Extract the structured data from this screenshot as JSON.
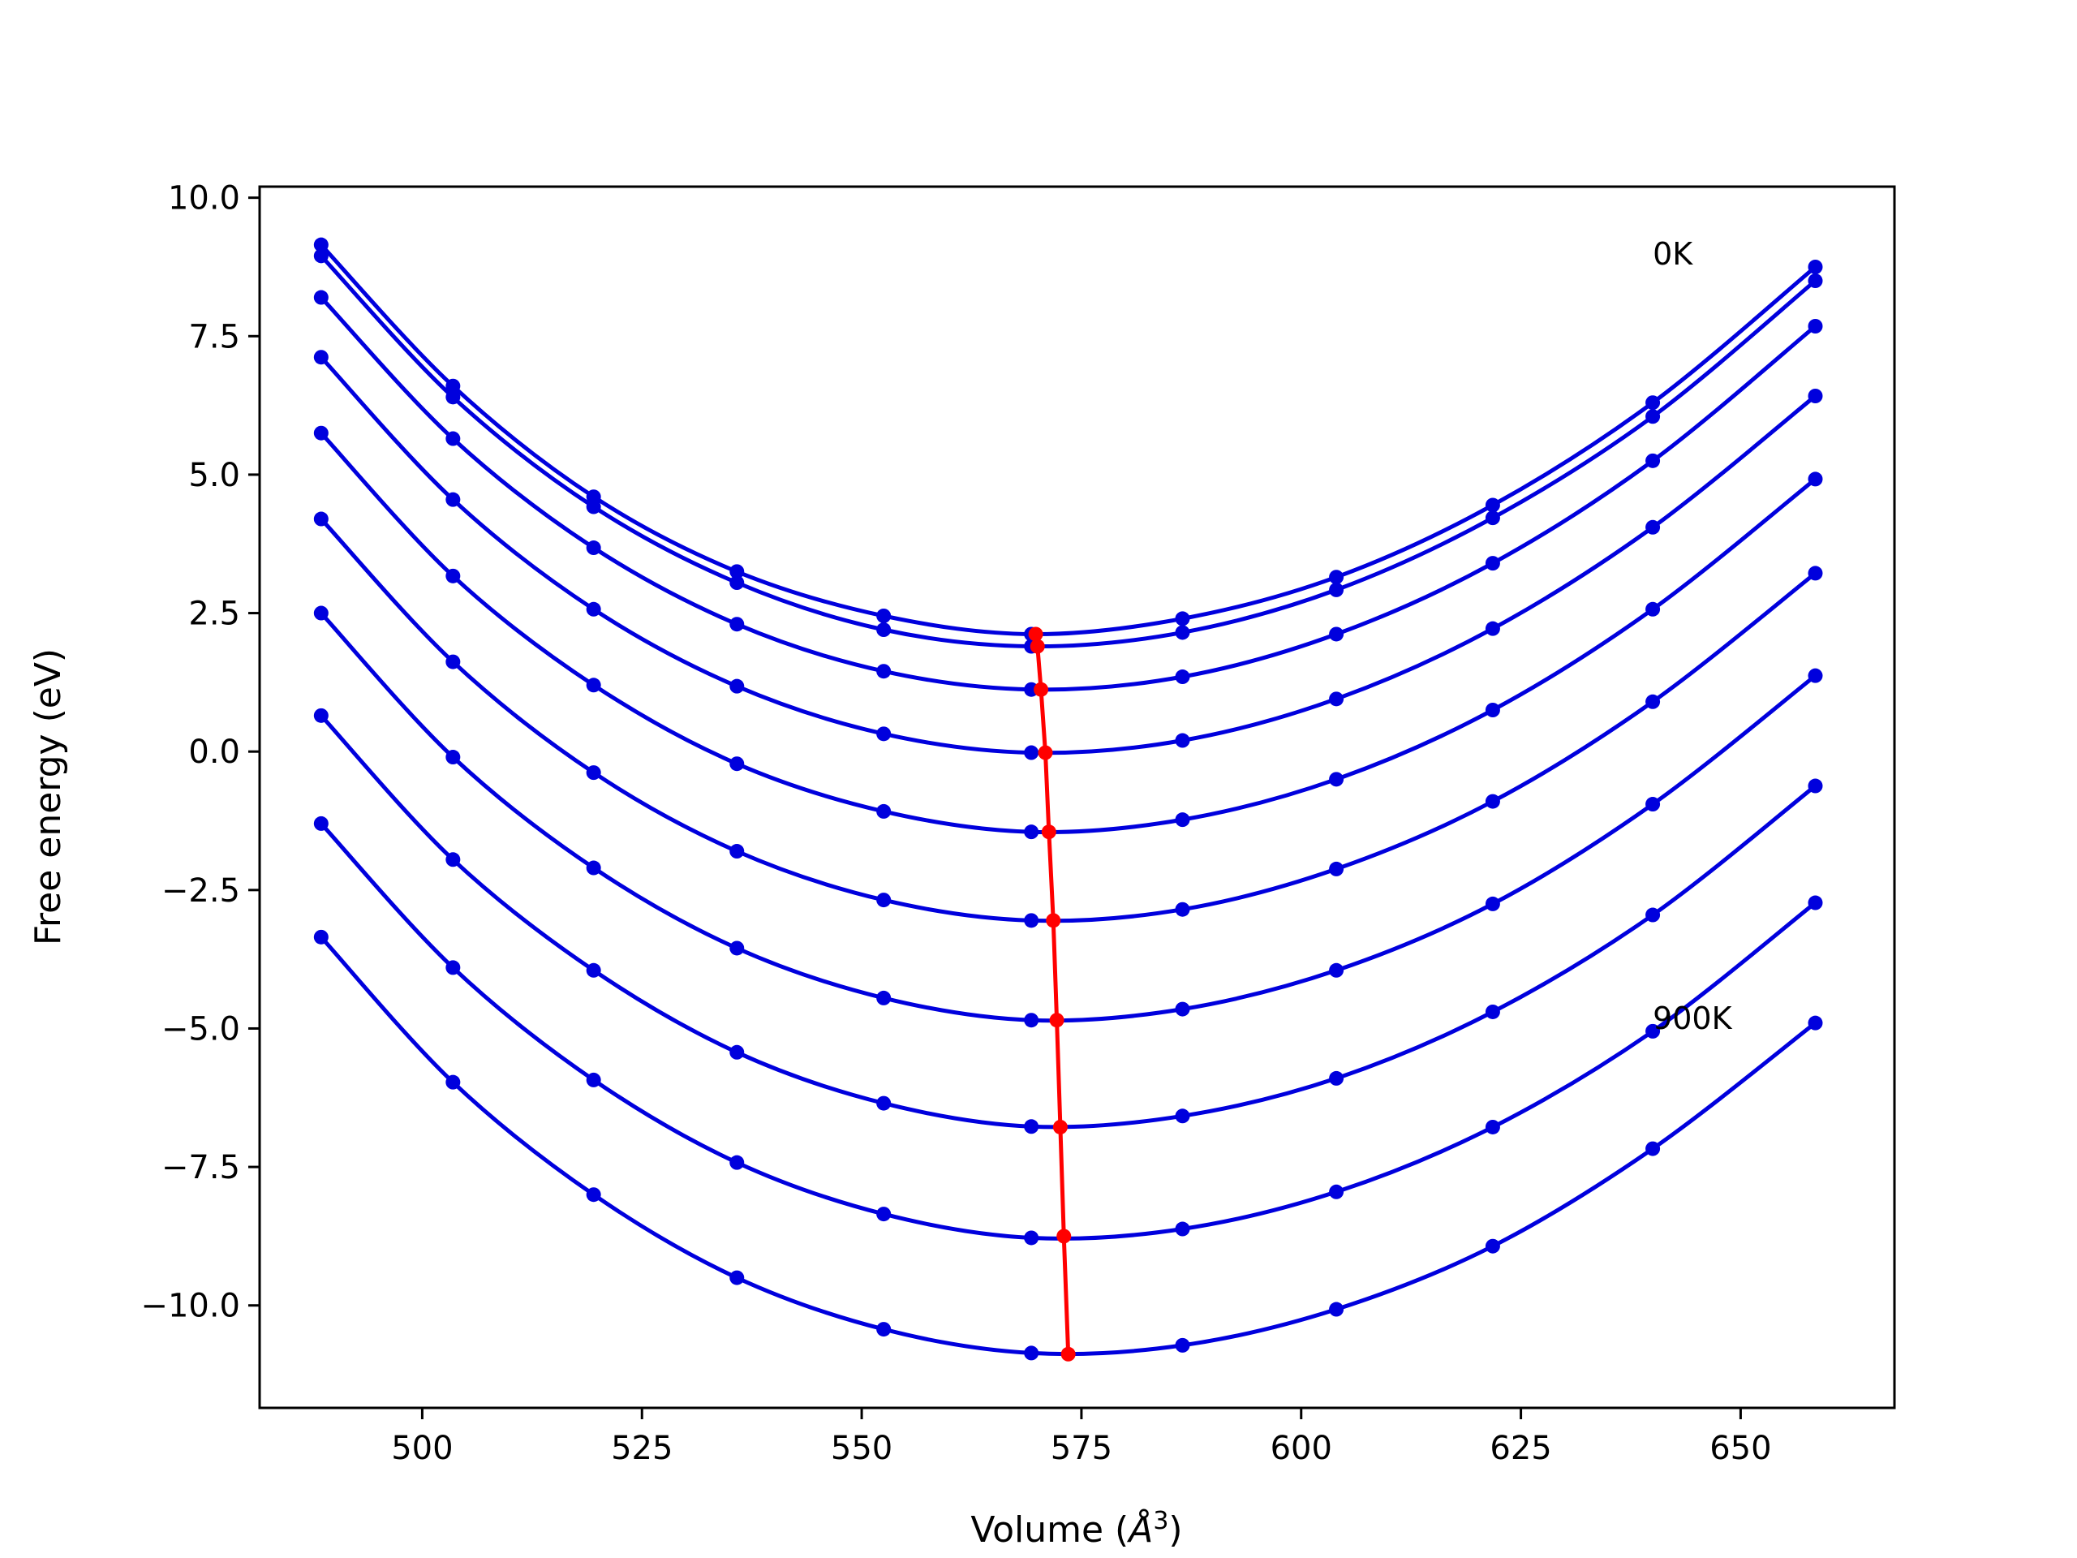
{
  "chart_data": {
    "type": "line",
    "title": "",
    "xlabel": "Volume (",
    "xlabel_sym": "Å",
    "xlabel_sup": "3",
    "xlabel_end": ")",
    "ylabel": "Free energy (eV)",
    "xlim": [
      481.5,
      667.5
    ],
    "ylim": [
      -11.85,
      10.2
    ],
    "xticks": [
      500,
      525,
      550,
      575,
      600,
      625,
      650
    ],
    "xtick_labels": [
      "500",
      "525",
      "550",
      "575",
      "600",
      "625",
      "650"
    ],
    "yticks": [
      10.0,
      7.5,
      5.0,
      2.5,
      0.0,
      -2.5,
      -5.0,
      -7.5,
      -10.0
    ],
    "ytick_labels": [
      "10.0",
      "7.5",
      "5.0",
      "2.5",
      "0.0",
      "−2.5",
      "−5.0",
      "−7.5",
      "−10.0"
    ],
    "grid": false,
    "legend": "none",
    "colors": {
      "curves": "#0000dd",
      "minimum_line": "#ff0000"
    },
    "annotations": [
      {
        "text": "0K",
        "x": 640,
        "y": 9.0
      },
      {
        "text": "900K",
        "x": 640,
        "y": -4.8
      }
    ],
    "x": [
      488.5,
      503.5,
      519.5,
      535.8,
      552.5,
      569.3,
      586.5,
      604.0,
      621.8,
      640.0,
      658.5
    ],
    "series": [
      {
        "values": [
          9.15,
          6.6,
          4.6,
          3.25,
          2.45,
          2.12,
          2.4,
          3.15,
          4.45,
          6.3,
          8.75
        ]
      },
      {
        "values": [
          8.95,
          6.4,
          4.42,
          3.05,
          2.2,
          1.9,
          2.15,
          2.92,
          4.22,
          6.05,
          8.5
        ]
      },
      {
        "values": [
          8.2,
          5.65,
          3.68,
          2.3,
          1.45,
          1.12,
          1.35,
          2.12,
          3.4,
          5.25,
          7.68
        ]
      },
      {
        "values": [
          7.12,
          4.55,
          2.57,
          1.18,
          0.32,
          -0.02,
          0.2,
          0.95,
          2.22,
          4.05,
          6.42
        ]
      },
      {
        "values": [
          5.75,
          3.17,
          1.2,
          -0.22,
          -1.08,
          -1.45,
          -1.23,
          -0.5,
          0.75,
          2.57,
          4.92
        ]
      },
      {
        "values": [
          4.2,
          1.62,
          -0.38,
          -1.8,
          -2.68,
          -3.05,
          -2.85,
          -2.12,
          -0.9,
          0.9,
          3.22
        ]
      },
      {
        "values": [
          2.5,
          -0.1,
          -2.1,
          -3.55,
          -4.45,
          -4.85,
          -4.65,
          -3.95,
          -2.75,
          -0.95,
          1.37
        ]
      },
      {
        "values": [
          0.65,
          -1.95,
          -3.95,
          -5.43,
          -6.35,
          -6.77,
          -6.58,
          -5.9,
          -4.7,
          -2.95,
          -0.62
        ]
      },
      {
        "values": [
          -1.3,
          -3.9,
          -5.93,
          -7.42,
          -8.35,
          -8.78,
          -8.62,
          -7.95,
          -6.78,
          -5.05,
          -2.73
        ]
      },
      {
        "values": [
          -3.35,
          -5.97,
          -8.0,
          -9.5,
          -10.43,
          -10.86,
          -10.72,
          -10.07,
          -8.93,
          -7.17,
          -4.9
        ]
      }
    ],
    "minimum_line": {
      "x": [
        569.8,
        570.0,
        570.4,
        570.9,
        571.3,
        571.8,
        572.2,
        572.6,
        573.0,
        573.5
      ],
      "y": [
        2.12,
        1.9,
        1.12,
        -0.02,
        -1.45,
        -3.05,
        -4.85,
        -6.78,
        -8.75,
        -10.88
      ]
    }
  }
}
